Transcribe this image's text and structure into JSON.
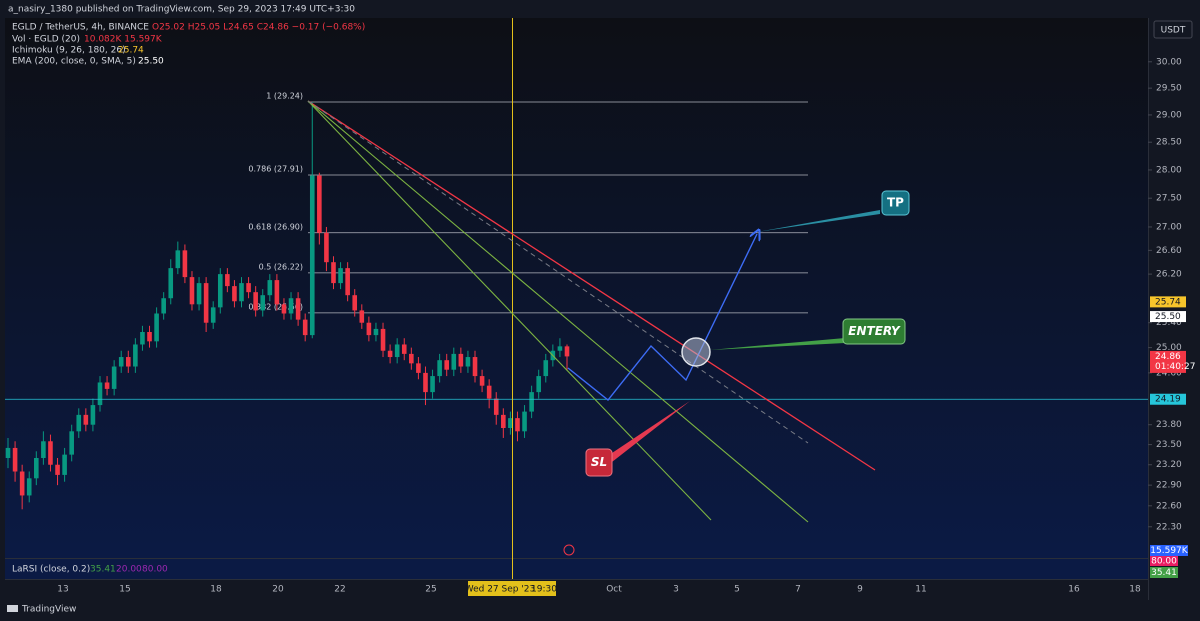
{
  "header": {
    "publisher": "a_nasiry_1380 published on TradingView.com, Sep 29, 2023 17:49 UTC+3:30",
    "currency": "USDT"
  },
  "legend": {
    "symbol": "EGLD / TetherUS, 4h, BINANCE",
    "ohlc": "O25.02  H25.05  L24.65  C24.86  −0.17 (−0.68%)",
    "volume": "Vol · EGLD (20)",
    "volume_values": "10.082K  15.597K",
    "ichimoku": "Ichimoku (9, 26, 180, 26)",
    "ichimoku_value": "25.74",
    "ema": "EMA (200, close, 0, SMA, 5)",
    "ema_value": "25.50"
  },
  "chart_data": {
    "type": "candlestick",
    "log_scale": true,
    "up_color": "#089981",
    "down_color": "#f23645",
    "ylim": [
      21.86,
      30.85
    ],
    "yticks": [
      {
        "value": 30,
        "label": "30.00"
      },
      {
        "value": 29.5,
        "label": "29.50"
      },
      {
        "value": 29,
        "label": "29.00"
      },
      {
        "value": 28.5,
        "label": "28.50"
      },
      {
        "value": 28,
        "label": "28.00"
      },
      {
        "value": 27.5,
        "label": "27.50"
      },
      {
        "value": 27,
        "label": "27.00"
      },
      {
        "value": 26.6,
        "label": "26.60"
      },
      {
        "value": 26.2,
        "label": "26.20"
      },
      {
        "value": 25.4,
        "label": "25.40"
      },
      {
        "value": 25,
        "label": "25.00"
      },
      {
        "value": 24.6,
        "label": "24.60"
      },
      {
        "value": 23.8,
        "label": "23.80"
      },
      {
        "value": 23.5,
        "label": "23.50"
      },
      {
        "value": 23.2,
        "label": "23.20"
      },
      {
        "value": 22.9,
        "label": "22.90"
      },
      {
        "value": 22.6,
        "label": "22.60"
      },
      {
        "value": 22.3,
        "label": "22.30"
      }
    ],
    "open": [
      23.3,
      23.45,
      23.1,
      22.75,
      23.0,
      23.3,
      23.55,
      23.2,
      23.05,
      23.35,
      23.7,
      23.95,
      23.8,
      24.1,
      24.45,
      24.35,
      24.7,
      24.85,
      24.7,
      25.05,
      25.25,
      25.1,
      25.55,
      25.8,
      26.3,
      26.6,
      26.15,
      25.7,
      26.05,
      25.4,
      25.65,
      26.2,
      26.0,
      25.75,
      26.05,
      25.9,
      25.6,
      25.85,
      26.1,
      25.7,
      25.55,
      25.8,
      25.45,
      25.2,
      27.9,
      26.9,
      26.4,
      26.05,
      26.3,
      25.85,
      25.6,
      25.4,
      25.2,
      25.3,
      24.95,
      24.85,
      25.05,
      24.9,
      24.75,
      24.6,
      24.3,
      24.55,
      24.8,
      24.65,
      24.9,
      24.7,
      24.85,
      24.55,
      24.4,
      24.2,
      23.95,
      23.75,
      23.9,
      23.7,
      24.0,
      24.3,
      24.55,
      24.8,
      24.95,
      25.02
    ],
    "high": [
      23.6,
      23.55,
      23.2,
      23.1,
      23.4,
      23.7,
      23.65,
      23.3,
      23.45,
      23.8,
      24.05,
      24.05,
      24.2,
      24.55,
      24.55,
      24.8,
      24.95,
      24.95,
      25.15,
      25.35,
      25.35,
      25.65,
      25.9,
      26.45,
      26.75,
      26.7,
      26.25,
      26.15,
      26.15,
      25.75,
      26.3,
      26.3,
      26.1,
      26.15,
      26.15,
      26.0,
      25.95,
      26.2,
      26.2,
      25.8,
      25.9,
      25.9,
      25.55,
      29.24,
      27.95,
      27.0,
      26.5,
      26.4,
      26.4,
      25.95,
      25.7,
      25.5,
      25.4,
      25.4,
      25.05,
      25.15,
      25.15,
      25.0,
      24.85,
      24.7,
      24.65,
      24.9,
      24.9,
      25.0,
      25.0,
      24.95,
      24.95,
      24.65,
      24.5,
      24.3,
      24.05,
      24.0,
      24.0,
      24.1,
      24.4,
      24.65,
      24.9,
      25.05,
      25.15,
      25.05
    ],
    "low": [
      23.15,
      22.95,
      22.55,
      22.65,
      22.9,
      23.2,
      23.1,
      22.9,
      22.95,
      23.25,
      23.6,
      23.7,
      23.7,
      24.0,
      24.25,
      24.25,
      24.6,
      24.6,
      24.6,
      24.95,
      25.0,
      25.0,
      25.45,
      25.7,
      26.2,
      26.05,
      25.6,
      25.6,
      25.25,
      25.3,
      25.55,
      25.9,
      25.65,
      25.65,
      25.8,
      25.5,
      25.5,
      25.75,
      25.6,
      25.45,
      25.45,
      25.35,
      25.1,
      25.15,
      26.7,
      26.25,
      25.95,
      25.95,
      25.75,
      25.5,
      25.3,
      25.1,
      25.1,
      24.85,
      24.75,
      24.75,
      24.8,
      24.65,
      24.5,
      24.1,
      24.2,
      24.45,
      24.55,
      24.55,
      24.6,
      24.6,
      24.45,
      24.3,
      24.05,
      23.8,
      23.6,
      23.65,
      23.55,
      23.6,
      23.9,
      24.2,
      24.45,
      24.7,
      24.85,
      24.65
    ],
    "close": [
      23.45,
      23.1,
      22.75,
      23.0,
      23.3,
      23.55,
      23.2,
      23.05,
      23.35,
      23.7,
      23.95,
      23.8,
      24.1,
      24.45,
      24.35,
      24.7,
      24.85,
      24.7,
      25.05,
      25.25,
      25.1,
      25.55,
      25.8,
      26.3,
      26.6,
      26.15,
      25.7,
      26.05,
      25.4,
      25.65,
      26.2,
      26.0,
      25.75,
      26.05,
      25.9,
      25.6,
      25.85,
      26.1,
      25.7,
      25.55,
      25.8,
      25.45,
      25.2,
      27.9,
      26.9,
      26.4,
      26.05,
      26.3,
      25.85,
      25.6,
      25.4,
      25.2,
      25.3,
      24.95,
      24.85,
      25.05,
      24.9,
      24.75,
      24.6,
      24.3,
      24.55,
      24.8,
      24.65,
      24.9,
      24.7,
      24.85,
      24.55,
      24.4,
      24.2,
      23.95,
      23.75,
      23.9,
      23.7,
      24.0,
      24.3,
      24.55,
      24.8,
      24.95,
      25.02,
      24.86
    ],
    "fib_levels": [
      {
        "label": "1 (29.24)",
        "value": 29.24
      },
      {
        "label": "0.786 (27.91)",
        "value": 27.91
      },
      {
        "label": "0.618 (26.90)",
        "value": 26.9
      },
      {
        "label": "0.5 (26.22)",
        "value": 26.22
      },
      {
        "label": "0.382 (25.56)",
        "value": 25.56
      }
    ],
    "price_labels": [
      {
        "value": 25.74,
        "label": "25.74",
        "color": "#f7c52b"
      },
      {
        "value": 25.5,
        "label": "25.50",
        "color": "#ffffff"
      },
      {
        "value": 24.86,
        "label": "24.86",
        "color": "#f23645",
        "countdown": "01:40:27"
      },
      {
        "value": 24.19,
        "label": "24.19",
        "color": "#26c6da",
        "line": true
      }
    ],
    "xticks": [
      "13",
      "15",
      "18",
      "20",
      "22",
      "25",
      "Oct",
      "3",
      "5",
      "7",
      "9",
      "11",
      "16",
      "18"
    ],
    "crosshair": {
      "date": "Wed 27 Sep '23",
      "time": "19:30"
    },
    "annotations": {
      "tp": "TP",
      "entry": "ENTERY",
      "sl": "SL"
    }
  },
  "indicator": {
    "name": "LaRSI (close, 0.2)",
    "value": "35.41",
    "low": "20.00",
    "high": "80.00",
    "badges": [
      "15.597K",
      "80.00",
      "35.41"
    ]
  },
  "footer": "TradingView"
}
